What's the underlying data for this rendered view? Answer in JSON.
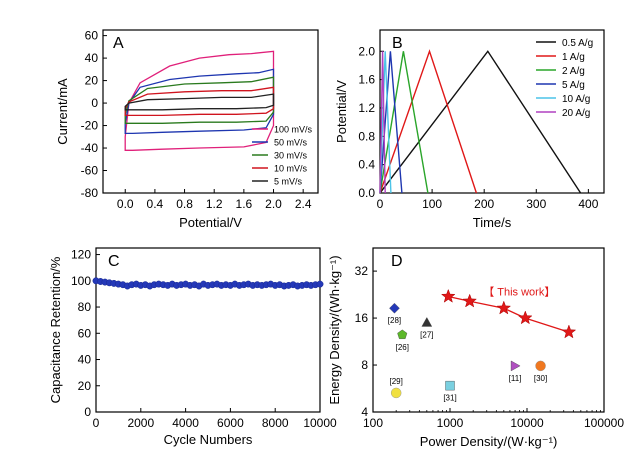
{
  "chart_data": [
    {
      "panel": "A",
      "type": "line",
      "xlabel": "Potential/V",
      "ylabel": "Current/mA",
      "xlim": [
        -0.3,
        2.6
      ],
      "ylim": [
        -80,
        65
      ],
      "xticks": [
        "0.0",
        "0.4",
        "0.8",
        "1.2",
        "1.6",
        "2.0",
        "2.4"
      ],
      "xtick_values": [
        0,
        0.4,
        0.8,
        1.2,
        1.6,
        2.0,
        2.4
      ],
      "yticks": [
        "-80",
        "-60",
        "-40",
        "-20",
        "0",
        "20",
        "40",
        "60"
      ],
      "ytick_values": [
        -80,
        -60,
        -40,
        -20,
        0,
        20,
        40,
        60
      ],
      "legend_position": "bottom-right",
      "series": [
        {
          "name": "100 mV/s",
          "color": "#e0207a",
          "upper": [
            [
              0,
              -30
            ],
            [
              0.05,
              0
            ],
            [
              0.2,
              18
            ],
            [
              0.6,
              33
            ],
            [
              1.0,
              40
            ],
            [
              1.4,
              43
            ],
            [
              1.7,
              44
            ],
            [
              2.0,
              46
            ]
          ],
          "lower": [
            [
              2.0,
              -20
            ],
            [
              1.9,
              -35
            ],
            [
              1.6,
              -39
            ],
            [
              1.0,
              -40
            ],
            [
              0.5,
              -41
            ],
            [
              0.1,
              -42
            ],
            [
              0,
              -42
            ]
          ]
        },
        {
          "name": "50 mV/s",
          "color": "#1e36b0",
          "upper": [
            [
              0,
              -18
            ],
            [
              0.05,
              0
            ],
            [
              0.2,
              14
            ],
            [
              0.6,
              21
            ],
            [
              1.0,
              24
            ],
            [
              1.5,
              26
            ],
            [
              1.8,
              27
            ],
            [
              2.0,
              30
            ]
          ],
          "lower": [
            [
              2.0,
              -10
            ],
            [
              1.9,
              -22
            ],
            [
              1.6,
              -24
            ],
            [
              1.0,
              -25
            ],
            [
              0.5,
              -26
            ],
            [
              0.1,
              -27
            ],
            [
              0,
              -27
            ]
          ]
        },
        {
          "name": "30 mV/s",
          "color": "#2a7a1e",
          "upper": [
            [
              0,
              -10
            ],
            [
              0.05,
              2
            ],
            [
              0.3,
              13
            ],
            [
              0.8,
              17
            ],
            [
              1.3,
              18
            ],
            [
              1.7,
              19
            ],
            [
              2.0,
              23
            ]
          ],
          "lower": [
            [
              2.0,
              -8
            ],
            [
              1.9,
              -16
            ],
            [
              1.5,
              -17
            ],
            [
              1.0,
              -17
            ],
            [
              0.5,
              -18
            ],
            [
              0.1,
              -18
            ],
            [
              0,
              -18
            ]
          ]
        },
        {
          "name": "10 mV/s",
          "color": "#d0141e",
          "upper": [
            [
              0,
              -5
            ],
            [
              0.05,
              1
            ],
            [
              0.3,
              8
            ],
            [
              0.8,
              10
            ],
            [
              1.3,
              11
            ],
            [
              1.7,
              11
            ],
            [
              2.0,
              14
            ]
          ],
          "lower": [
            [
              2.0,
              -5
            ],
            [
              1.9,
              -9
            ],
            [
              1.5,
              -10
            ],
            [
              1.0,
              -10
            ],
            [
              0.5,
              -11
            ],
            [
              0.1,
              -11
            ],
            [
              0,
              -11
            ]
          ]
        },
        {
          "name": "5 mV/s",
          "color": "#222222",
          "upper": [
            [
              0,
              -3
            ],
            [
              0.05,
              0
            ],
            [
              0.3,
              3
            ],
            [
              0.8,
              4
            ],
            [
              1.3,
              5
            ],
            [
              1.7,
              5
            ],
            [
              2.0,
              8
            ]
          ],
          "lower": [
            [
              2.0,
              -2
            ],
            [
              1.9,
              -4
            ],
            [
              1.5,
              -5
            ],
            [
              1.0,
              -5
            ],
            [
              0.5,
              -6
            ],
            [
              0.1,
              -6
            ],
            [
              0,
              -6
            ]
          ]
        }
      ]
    },
    {
      "panel": "B",
      "type": "line",
      "xlabel": "Time/s",
      "ylabel": "Potential/V",
      "xlim": [
        0,
        430
      ],
      "ylim": [
        0,
        2.3
      ],
      "xticks": [
        "0",
        "100",
        "200",
        "300",
        "400"
      ],
      "xtick_values": [
        0,
        100,
        200,
        300,
        400
      ],
      "yticks": [
        "0.0",
        "0.4",
        "0.8",
        "1.2",
        "1.6",
        "2.0"
      ],
      "ytick_values": [
        0,
        0.4,
        0.8,
        1.2,
        1.6,
        2.0
      ],
      "legend_position": "top-right",
      "series": [
        {
          "name": "0.5 A/g",
          "color": "#111111",
          "points": [
            [
              0,
              0
            ],
            [
              207,
              2.0
            ],
            [
              385,
              0
            ]
          ]
        },
        {
          "name": "1 A/g",
          "color": "#e01818",
          "points": [
            [
              0,
              0
            ],
            [
              95,
              2.0
            ],
            [
              185,
              0
            ]
          ]
        },
        {
          "name": "2 A/g",
          "color": "#2aa52a",
          "points": [
            [
              0,
              0
            ],
            [
              45,
              2.0
            ],
            [
              92,
              0
            ]
          ]
        },
        {
          "name": "5 A/g",
          "color": "#1e36b0",
          "points": [
            [
              0,
              0
            ],
            [
              20,
              2.0
            ],
            [
              42,
              0
            ]
          ]
        },
        {
          "name": "10 A/g",
          "color": "#4cc4e8",
          "points": [
            [
              0,
              0
            ],
            [
              10,
              2.0
            ],
            [
              21,
              0
            ]
          ]
        },
        {
          "name": "20 A/g",
          "color": "#b040c0",
          "points": [
            [
              0,
              0
            ],
            [
              5,
              2.0
            ],
            [
              10,
              0
            ]
          ]
        }
      ]
    },
    {
      "panel": "C",
      "type": "scatter",
      "xlabel": "Cycle Numbers",
      "ylabel": "Capacitance Retention/%",
      "xlim": [
        0,
        10000
      ],
      "ylim": [
        0,
        125
      ],
      "xticks": [
        "0",
        "2000",
        "4000",
        "6000",
        "8000",
        "10000"
      ],
      "xtick_values": [
        0,
        2000,
        4000,
        6000,
        8000,
        10000
      ],
      "yticks": [
        "0",
        "20",
        "40",
        "60",
        "80",
        "100",
        "120"
      ],
      "ytick_values": [
        0,
        20,
        40,
        60,
        80,
        100,
        120
      ],
      "color": "#2438b8",
      "points": [
        [
          0,
          100
        ],
        [
          200,
          99.5
        ],
        [
          400,
          99
        ],
        [
          600,
          98.5
        ],
        [
          800,
          98
        ],
        [
          1000,
          97.5
        ],
        [
          1200,
          97
        ],
        [
          1400,
          96
        ],
        [
          1600,
          97
        ],
        [
          1800,
          97.5
        ],
        [
          2000,
          96.5
        ],
        [
          2200,
          97
        ],
        [
          2400,
          96
        ],
        [
          2600,
          97
        ],
        [
          2800,
          97.5
        ],
        [
          3000,
          97
        ],
        [
          3200,
          96.5
        ],
        [
          3400,
          97.5
        ],
        [
          3600,
          96.5
        ],
        [
          3800,
          97
        ],
        [
          4000,
          97.5
        ],
        [
          4200,
          96.5
        ],
        [
          4400,
          97
        ],
        [
          4600,
          96
        ],
        [
          4800,
          97.5
        ],
        [
          5000,
          96.5
        ],
        [
          5200,
          97
        ],
        [
          5400,
          97.5
        ],
        [
          5600,
          96.5
        ],
        [
          5800,
          97
        ],
        [
          6000,
          96.5
        ],
        [
          6200,
          97.5
        ],
        [
          6400,
          96.5
        ],
        [
          6600,
          97
        ],
        [
          6800,
          97.5
        ],
        [
          7000,
          96.5
        ],
        [
          7200,
          97
        ],
        [
          7400,
          96.5
        ],
        [
          7600,
          97
        ],
        [
          7800,
          97.5
        ],
        [
          8000,
          96.5
        ],
        [
          8200,
          97
        ],
        [
          8400,
          96
        ],
        [
          8600,
          96.5
        ],
        [
          8800,
          97
        ],
        [
          9000,
          96
        ],
        [
          9200,
          96.5
        ],
        [
          9400,
          97
        ],
        [
          9600,
          96.5
        ],
        [
          9800,
          97
        ],
        [
          10000,
          97.5
        ]
      ]
    },
    {
      "panel": "D",
      "type": "scatter",
      "xlabel": "Power Density/(W·kg⁻¹)",
      "ylabel": "Energy Density/(Wh·kg⁻¹)",
      "xscale": "log",
      "yscale": "log",
      "xlim": [
        100,
        100000
      ],
      "ylim": [
        4,
        45
      ],
      "xticks": [
        "100",
        "1000",
        "10000",
        "100000"
      ],
      "xtick_values": [
        100,
        1000,
        10000,
        100000
      ],
      "yticks": [
        "4",
        "8",
        "16",
        "32"
      ],
      "ytick_values": [
        4,
        8,
        16,
        32
      ],
      "this_work": {
        "label": "【 This work】",
        "color": "#e01818",
        "points": [
          [
            950,
            22
          ],
          [
            1800,
            20.5
          ],
          [
            5000,
            18.5
          ],
          [
            9500,
            16
          ],
          [
            35000,
            13
          ]
        ]
      },
      "references": [
        {
          "label": "[28]",
          "color": "#2438b8",
          "shape": "diamond",
          "x": 190,
          "y": 18.5
        },
        {
          "label": "[26]",
          "color": "#5cb82a",
          "shape": "pentagon",
          "x": 240,
          "y": 12.5
        },
        {
          "label": "[27]",
          "color": "#333333",
          "shape": "triangle-up",
          "x": 500,
          "y": 15
        },
        {
          "label": "[29]",
          "color": "#f0e040",
          "shape": "circle",
          "x": 200,
          "y": 5.3
        },
        {
          "label": "[31]",
          "color": "#7ad0e0",
          "shape": "square",
          "x": 1000,
          "y": 5.9
        },
        {
          "label": "[11]",
          "color": "#b050c0",
          "shape": "triangle-right",
          "x": 7000,
          "y": 7.9
        },
        {
          "label": "[30]",
          "color": "#f07820",
          "shape": "circle",
          "x": 15000,
          "y": 7.9
        }
      ]
    }
  ]
}
